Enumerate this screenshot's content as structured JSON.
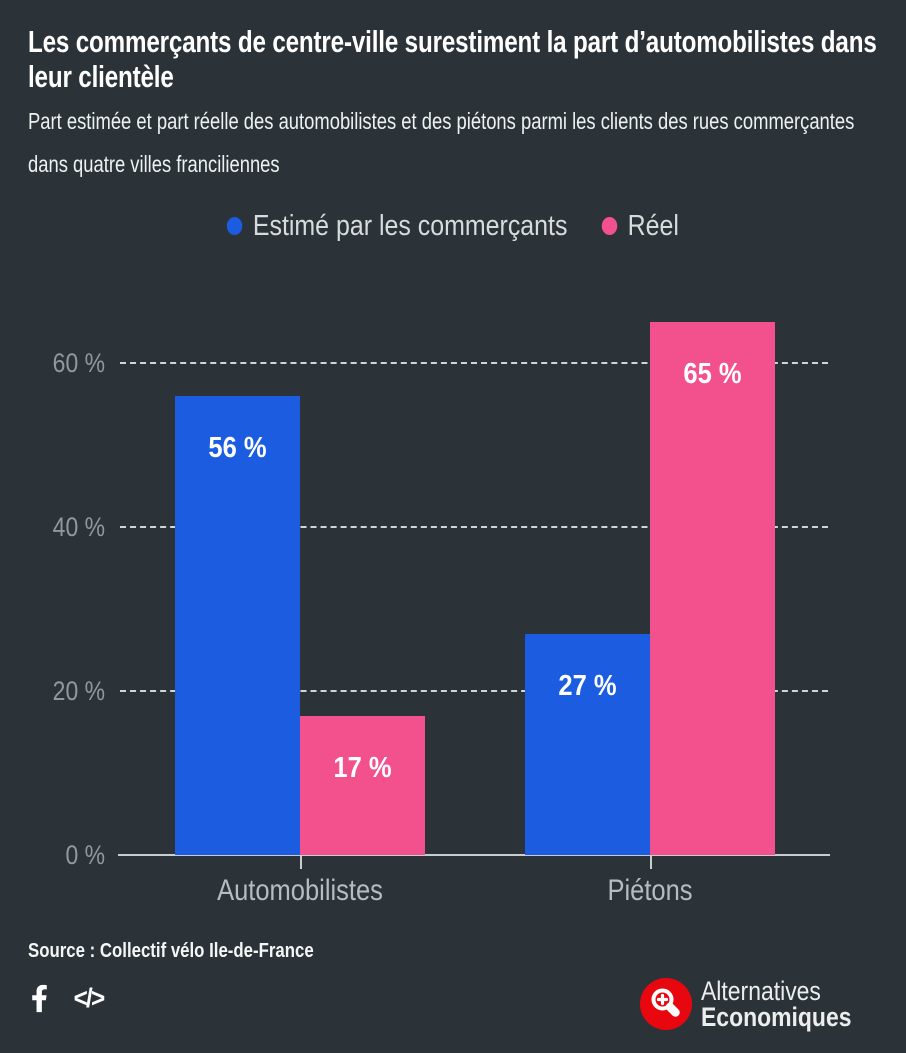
{
  "chart_data": {
    "type": "bar",
    "title": "Les commerçants de centre-ville surestiment la part d’automobilistes dans leur clientèle",
    "subtitle": "Part estimée et part réelle des automobilistes et des piétons parmi les clients des rues commerçantes dans quatre villes franciliennes",
    "categories": [
      "Automobilistes",
      "Piétons"
    ],
    "series": [
      {
        "name": "Estimé par les commerçants",
        "color": "#1b5ce1",
        "values": [
          56,
          27
        ],
        "data_labels": [
          "56 %",
          "27 %"
        ]
      },
      {
        "name": "Réel",
        "color": "#f3518d",
        "values": [
          17,
          65
        ],
        "data_labels": [
          "17 %",
          "65 %"
        ]
      }
    ],
    "xlabel": "",
    "ylabel": "",
    "ylim": [
      0,
      72
    ],
    "yticks": [
      0,
      20,
      40,
      60
    ],
    "ytick_labels": [
      "0 %",
      "20 %",
      "40 %",
      "60 %"
    ],
    "grid": "horizontal-dashed",
    "legend_position": "top-center",
    "source": "Source : Collectif vélo Ile-de-France"
  },
  "colors": {
    "background": "#2c3338",
    "title_text": "#ffffff",
    "subtitle_text": "#eef1f1",
    "legend_text": "#d8dbdc",
    "axis_label": "#92989d",
    "category_label": "#b7bcc0",
    "gridline": "#d2d5d6",
    "axis_line": "#c9cdcf",
    "bar_label_text": "#ffffff",
    "estimated_blue": "#1b5ce1",
    "real_pink": "#f3518d",
    "logo_red": "#e8060f",
    "icon_white": "#ffffff"
  },
  "footer": {
    "embed_label": "</>",
    "icons": {
      "facebook": "facebook-icon",
      "embed": "embed-code-icon",
      "logo_badge": "magnifier-plus-icon"
    },
    "logo": {
      "line1": "Alternatives",
      "line2": "Economiques"
    }
  }
}
